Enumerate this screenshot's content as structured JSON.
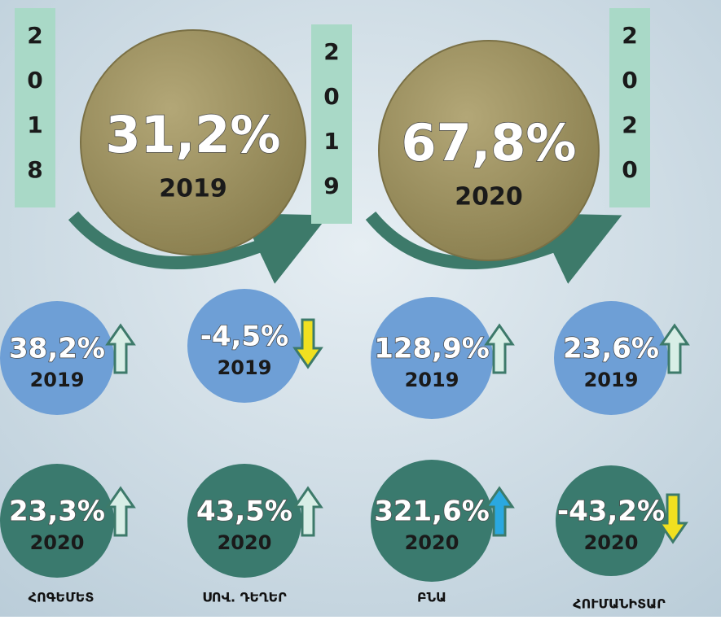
{
  "year_columns": [
    [
      "2",
      "0",
      "1",
      "8"
    ],
    [
      "2",
      "0",
      "1",
      "9"
    ],
    [
      "2",
      "0",
      "2",
      "0"
    ]
  ],
  "main_circles": [
    {
      "value": "31,2%",
      "year": "2019"
    },
    {
      "value": "67,8%",
      "year": "2020"
    }
  ],
  "rows": [
    [
      {
        "value": "38,2%",
        "year": "2019"
      },
      {
        "value": "-4,5%",
        "year": "2019"
      },
      {
        "value": "128,9%",
        "year": "2019"
      },
      {
        "value": "23,6%",
        "year": "2019"
      }
    ],
    [
      {
        "value": "23,3%",
        "year": "2020"
      },
      {
        "value": "43,5%",
        "year": "2020"
      },
      {
        "value": "321,6%",
        "year": "2020"
      },
      {
        "value": "-43,2%",
        "year": "2020"
      }
    ]
  ],
  "labels": [
    "ՀՈԳԵՄԵՏ",
    "ՍՈՎ. ԴԵՂԵՐ",
    "ԲՆԱ",
    "ՀՈՒՄԱՆԻՏԱՐ"
  ]
}
